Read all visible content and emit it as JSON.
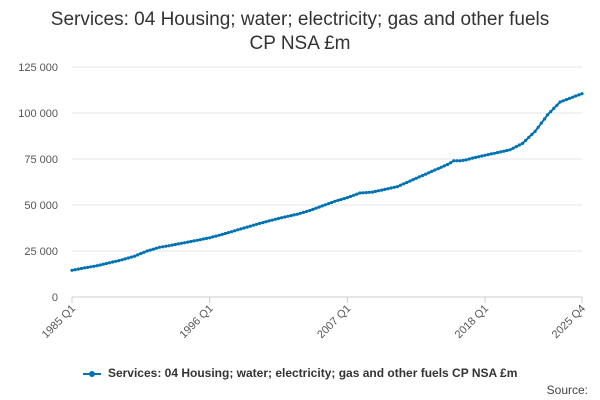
{
  "chart_data": {
    "type": "line",
    "title_lines": [
      "Services: 04 Housing; water; electricity; gas and other fuels",
      "CP NSA £m"
    ],
    "xlabel": "",
    "ylabel": "",
    "x_tick_labels": [
      "1985 Q1",
      "1996 Q1",
      "2007 Q1",
      "2018 Q1",
      "2025 Q4"
    ],
    "y_tick_labels": [
      "0",
      "25 000",
      "50 000",
      "75 000",
      "100 000",
      "125 000"
    ],
    "ylim": [
      0,
      125000
    ],
    "xlim": [
      "1985 Q1",
      "2025 Q4"
    ],
    "grid": "horizontal",
    "legend_position": "bottom",
    "series": [
      {
        "name": "Services: 04 Housing; water; electricity; gas and other fuels CP NSA £m",
        "color": "#0072b2",
        "points": [
          [
            "1985 Q1",
            14500
          ],
          [
            "1986 Q1",
            15800
          ],
          [
            "1987 Q1",
            17000
          ],
          [
            "1988 Q1",
            18600
          ],
          [
            "1989 Q1",
            20200
          ],
          [
            "1990 Q1",
            22200
          ],
          [
            "1991 Q1",
            25000
          ],
          [
            "1992 Q1",
            27000
          ],
          [
            "1993 Q1",
            28200
          ],
          [
            "1994 Q1",
            29500
          ],
          [
            "1995 Q1",
            30800
          ],
          [
            "1996 Q1",
            32200
          ],
          [
            "1997 Q1",
            34000
          ],
          [
            "1998 Q1",
            36000
          ],
          [
            "1999 Q1",
            38000
          ],
          [
            "2000 Q1",
            40000
          ],
          [
            "2001 Q1",
            41800
          ],
          [
            "2002 Q1",
            43500
          ],
          [
            "2003 Q1",
            45000
          ],
          [
            "2004 Q1",
            47000
          ],
          [
            "2005 Q1",
            49500
          ],
          [
            "2006 Q1",
            52000
          ],
          [
            "2007 Q1",
            54000
          ],
          [
            "2008 Q1",
            56500
          ],
          [
            "2009 Q1",
            57000
          ],
          [
            "2010 Q1",
            58500
          ],
          [
            "2011 Q1",
            60000
          ],
          [
            "2012 Q1",
            63000
          ],
          [
            "2013 Q1",
            66000
          ],
          [
            "2014 Q1",
            69000
          ],
          [
            "2015 Q1",
            72000
          ],
          [
            "2015 Q3",
            74000
          ],
          [
            "2016 Q1",
            74000
          ],
          [
            "2016 Q3",
            74500
          ],
          [
            "2017 Q1",
            75500
          ],
          [
            "2018 Q1",
            77000
          ],
          [
            "2019 Q1",
            78500
          ],
          [
            "2020 Q1",
            80000
          ],
          [
            "2021 Q1",
            83500
          ],
          [
            "2022 Q1",
            90000
          ],
          [
            "2023 Q1",
            99000
          ],
          [
            "2024 Q1",
            106000
          ],
          [
            "2025 Q4",
            110500
          ]
        ]
      }
    ]
  },
  "legend": {
    "label": "Services: 04 Housing; water; electricity; gas and other fuels CP NSA £m"
  },
  "source_label": "Source:"
}
